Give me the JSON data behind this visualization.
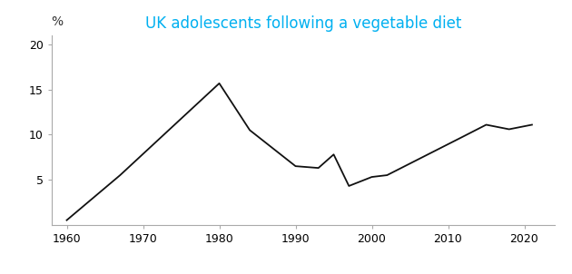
{
  "title": "UK adolescents following a vegetable diet",
  "title_color": "#00B0F0",
  "ylabel": "%",
  "x_values": [
    1960,
    1967,
    1980,
    1984,
    1990,
    1993,
    1995,
    1997,
    2000,
    2002,
    2012,
    2015,
    2018,
    2021
  ],
  "y_values": [
    0.5,
    5.5,
    15.7,
    10.5,
    6.5,
    6.3,
    7.8,
    4.3,
    5.3,
    5.5,
    9.8,
    11.1,
    10.6,
    11.1
  ],
  "xlim": [
    1958,
    2024
  ],
  "ylim": [
    0,
    21
  ],
  "yticks": [
    5,
    10,
    15,
    20
  ],
  "xticks": [
    1960,
    1970,
    1980,
    1990,
    2000,
    2010,
    2020
  ],
  "line_color": "#111111",
  "line_width": 1.3,
  "background_color": "#ffffff",
  "tick_label_fontsize": 9,
  "title_fontsize": 12,
  "spine_color": "#aaaaaa"
}
